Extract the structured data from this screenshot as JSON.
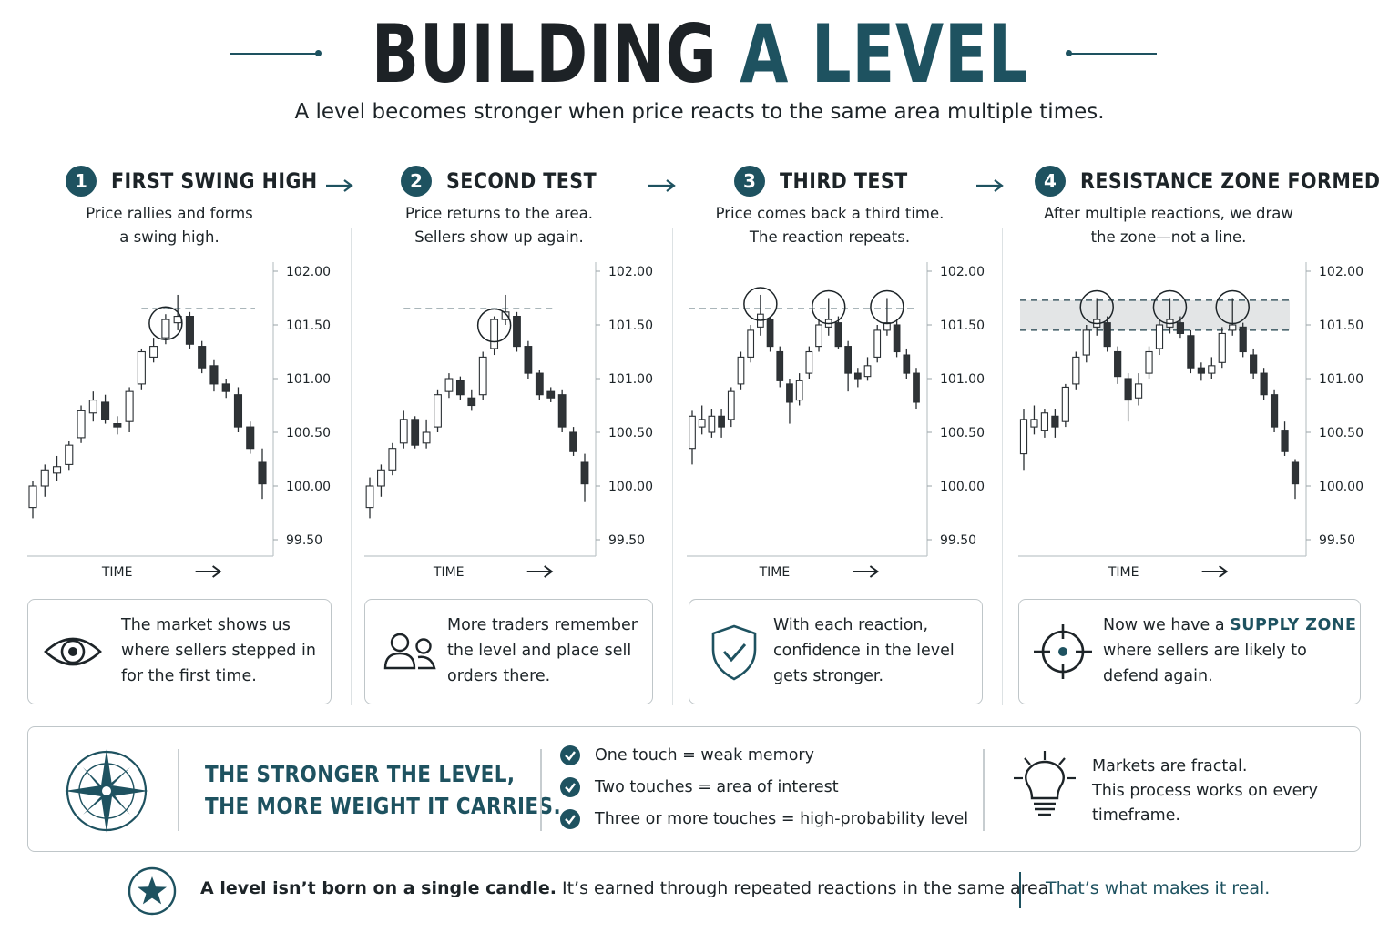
{
  "header": {
    "title_part1": "BUILDING",
    "title_part2": "A LEVEL",
    "subtitle": "A level becomes stronger when price reacts to the same area multiple times."
  },
  "colors": {
    "accent": "#1e5260",
    "dark": "#1d2428",
    "bull_fill": "#ffffff",
    "bear_fill": "#2f3336",
    "zone_fill": "#e3e5e6",
    "border": "#bfc6c9"
  },
  "steps": [
    {
      "number": "1",
      "title": "FIRST SWING HIGH",
      "desc_line1": "Price rallies and forms",
      "desc_line2": "a swing high.",
      "box_text": [
        "The market shows us",
        "where sellers stepped in",
        "for the first time."
      ],
      "box_icon": "eye-icon"
    },
    {
      "number": "2",
      "title": "SECOND TEST",
      "desc_line1": "Price returns to the area.",
      "desc_line2": "Sellers show up again.",
      "box_text": [
        "More traders remember",
        "the level and place sell",
        "orders there."
      ],
      "box_icon": "users-icon"
    },
    {
      "number": "3",
      "title": "THIRD TEST",
      "desc_line1": "Price comes back a third time.",
      "desc_line2": "The reaction repeats.",
      "box_text": [
        "With each reaction,",
        "confidence in the level",
        "gets stronger."
      ],
      "box_icon": "shield-check-icon"
    },
    {
      "number": "4",
      "title": "RESISTANCE ZONE FORMED",
      "desc_line1": "After multiple reactions, we draw",
      "desc_line2": "the zone—not a line.",
      "box_text_prefix": "Now we have a",
      "box_text_highlight": "SUPPLY ZONE",
      "box_text": [
        "where sellers are likely to",
        "defend again."
      ],
      "box_icon": "crosshair-icon"
    }
  ],
  "chart_data": [
    {
      "type": "candlestick",
      "title": "FIRST SWING HIGH",
      "xlabel": "TIME",
      "yticks": [
        "102.00",
        "101.50",
        "101.00",
        "100.50",
        "100.00",
        "99.50"
      ],
      "ylim": [
        99.5,
        102.0
      ],
      "level": 101.65,
      "touch_indices": [
        11
      ],
      "candles": [
        [
          99.8,
          100.0,
          100.05,
          99.7
        ],
        [
          100.0,
          100.15,
          100.2,
          99.9
        ],
        [
          100.12,
          100.18,
          100.28,
          100.05
        ],
        [
          100.2,
          100.38,
          100.42,
          100.15
        ],
        [
          100.45,
          100.7,
          100.75,
          100.4
        ],
        [
          100.68,
          100.8,
          100.88,
          100.6
        ],
        [
          100.78,
          100.62,
          100.85,
          100.58
        ],
        [
          100.58,
          100.55,
          100.65,
          100.48
        ],
        [
          100.6,
          100.88,
          100.92,
          100.5
        ],
        [
          100.95,
          101.25,
          101.28,
          100.9
        ],
        [
          101.2,
          101.3,
          101.38,
          101.15
        ],
        [
          101.38,
          101.55,
          101.6,
          101.32
        ],
        [
          101.52,
          101.58,
          101.78,
          101.45
        ],
        [
          101.58,
          101.32,
          101.62,
          101.28
        ],
        [
          101.3,
          101.1,
          101.35,
          101.05
        ],
        [
          101.12,
          100.95,
          101.18,
          100.88
        ],
        [
          100.95,
          100.88,
          101.0,
          100.82
        ],
        [
          100.85,
          100.55,
          100.92,
          100.5
        ],
        [
          100.55,
          100.35,
          100.6,
          100.3
        ],
        [
          100.22,
          100.02,
          100.35,
          99.88
        ]
      ]
    },
    {
      "type": "candlestick",
      "title": "SECOND TEST",
      "xlabel": "TIME",
      "yticks": [
        "102.00",
        "101.50",
        "101.00",
        "100.50",
        "100.00",
        "99.50"
      ],
      "ylim": [
        99.5,
        102.0
      ],
      "level": 101.65,
      "touch_indices": [
        11
      ],
      "candles": [
        [
          99.8,
          100.0,
          100.08,
          99.7
        ],
        [
          100.0,
          100.15,
          100.2,
          99.9
        ],
        [
          100.15,
          100.35,
          100.4,
          100.1
        ],
        [
          100.4,
          100.62,
          100.7,
          100.35
        ],
        [
          100.62,
          100.38,
          100.65,
          100.35
        ],
        [
          100.4,
          100.5,
          100.62,
          100.35
        ],
        [
          100.55,
          100.85,
          100.9,
          100.5
        ],
        [
          100.88,
          101.0,
          101.05,
          100.82
        ],
        [
          100.98,
          100.85,
          101.02,
          100.8
        ],
        [
          100.82,
          100.75,
          100.9,
          100.7
        ],
        [
          100.85,
          101.2,
          101.25,
          100.8
        ],
        [
          101.28,
          101.55,
          101.58,
          101.22
        ],
        [
          101.55,
          101.62,
          101.78,
          101.5
        ],
        [
          101.58,
          101.3,
          101.62,
          101.25
        ],
        [
          101.3,
          101.05,
          101.35,
          101.0
        ],
        [
          101.05,
          100.85,
          101.08,
          100.8
        ],
        [
          100.88,
          100.82,
          100.92,
          100.78
        ],
        [
          100.85,
          100.55,
          100.9,
          100.5
        ],
        [
          100.5,
          100.32,
          100.55,
          100.28
        ],
        [
          100.22,
          100.02,
          100.3,
          99.85
        ]
      ]
    },
    {
      "type": "candlestick",
      "title": "THIRD TEST",
      "xlabel": "TIME",
      "yticks": [
        "102.00",
        "101.50",
        "101.00",
        "100.50",
        "100.00",
        "99.50"
      ],
      "ylim": [
        99.5,
        102.0
      ],
      "level": 101.65,
      "touch_indices": [
        7,
        14,
        20
      ],
      "candles": [
        [
          100.35,
          100.65,
          100.7,
          100.2
        ],
        [
          100.55,
          100.62,
          100.75,
          100.48
        ],
        [
          100.5,
          100.65,
          100.72,
          100.45
        ],
        [
          100.65,
          100.55,
          100.72,
          100.45
        ],
        [
          100.62,
          100.88,
          100.92,
          100.55
        ],
        [
          100.95,
          101.2,
          101.25,
          100.9
        ],
        [
          101.2,
          101.45,
          101.5,
          101.15
        ],
        [
          101.48,
          101.6,
          101.78,
          101.4
        ],
        [
          101.55,
          101.3,
          101.58,
          101.25
        ],
        [
          101.25,
          100.98,
          101.3,
          100.92
        ],
        [
          100.95,
          100.78,
          101.0,
          100.58
        ],
        [
          100.8,
          100.98,
          101.05,
          100.75
        ],
        [
          101.05,
          101.25,
          101.3,
          101.0
        ],
        [
          101.3,
          101.5,
          101.55,
          101.25
        ],
        [
          101.48,
          101.55,
          101.75,
          101.4
        ],
        [
          101.52,
          101.3,
          101.58,
          101.28
        ],
        [
          101.3,
          101.05,
          101.35,
          100.88
        ],
        [
          101.05,
          101.0,
          101.1,
          100.92
        ],
        [
          101.02,
          101.12,
          101.2,
          100.98
        ],
        [
          101.2,
          101.45,
          101.5,
          101.15
        ],
        [
          101.45,
          101.52,
          101.75,
          101.4
        ],
        [
          101.5,
          101.25,
          101.55,
          101.2
        ],
        [
          101.22,
          101.05,
          101.28,
          101.0
        ],
        [
          101.05,
          100.78,
          101.1,
          100.72
        ]
      ]
    },
    {
      "type": "candlestick",
      "title": "RESISTANCE ZONE FORMED",
      "xlabel": "TIME",
      "yticks": [
        "102.00",
        "101.50",
        "101.00",
        "100.50",
        "100.00",
        "99.50"
      ],
      "ylim": [
        99.5,
        102.0
      ],
      "zone": [
        101.45,
        101.73
      ],
      "touch_indices": [
        7,
        14,
        20
      ],
      "candles": [
        [
          100.3,
          100.62,
          100.72,
          100.15
        ],
        [
          100.55,
          100.62,
          100.75,
          100.48
        ],
        [
          100.52,
          100.68,
          100.72,
          100.45
        ],
        [
          100.65,
          100.55,
          100.72,
          100.45
        ],
        [
          100.6,
          100.92,
          100.95,
          100.55
        ],
        [
          100.95,
          101.2,
          101.25,
          100.9
        ],
        [
          101.22,
          101.45,
          101.5,
          101.15
        ],
        [
          101.48,
          101.55,
          101.75,
          101.4
        ],
        [
          101.52,
          101.3,
          101.58,
          101.25
        ],
        [
          101.25,
          101.02,
          101.3,
          100.95
        ],
        [
          101.0,
          100.8,
          101.05,
          100.6
        ],
        [
          100.82,
          100.95,
          101.05,
          100.75
        ],
        [
          101.05,
          101.25,
          101.3,
          101.0
        ],
        [
          101.28,
          101.5,
          101.55,
          101.22
        ],
        [
          101.48,
          101.55,
          101.75,
          101.42
        ],
        [
          101.52,
          101.42,
          101.58,
          101.38
        ],
        [
          101.4,
          101.1,
          101.45,
          101.05
        ],
        [
          101.1,
          101.05,
          101.15,
          100.98
        ],
        [
          101.05,
          101.12,
          101.2,
          101.0
        ],
        [
          101.15,
          101.42,
          101.48,
          101.1
        ],
        [
          101.45,
          101.5,
          101.75,
          101.4
        ],
        [
          101.48,
          101.25,
          101.52,
          101.2
        ],
        [
          101.22,
          101.05,
          101.28,
          101.0
        ],
        [
          101.05,
          100.85,
          101.1,
          100.8
        ],
        [
          100.85,
          100.55,
          100.9,
          100.5
        ],
        [
          100.52,
          100.32,
          100.6,
          100.28
        ],
        [
          100.22,
          100.02,
          100.25,
          99.88
        ]
      ]
    }
  ],
  "summary": {
    "strong_line1": "THE STRONGER THE LEVEL,",
    "strong_line2": "THE MORE WEIGHT IT CARRIES.",
    "checks": [
      "One touch = weak memory",
      "Two touches = area of interest",
      "Three or more touches = high-probability level"
    ],
    "fractal_line1": "Markets are fractal.",
    "fractal_line2": "This process works on every",
    "fractal_line3": "timeframe."
  },
  "footer": {
    "bold_text": "A level isn’t born on a single candle.",
    "text": " It’s earned through repeated reactions in the same area.",
    "accent_text": "That’s what makes it real."
  }
}
